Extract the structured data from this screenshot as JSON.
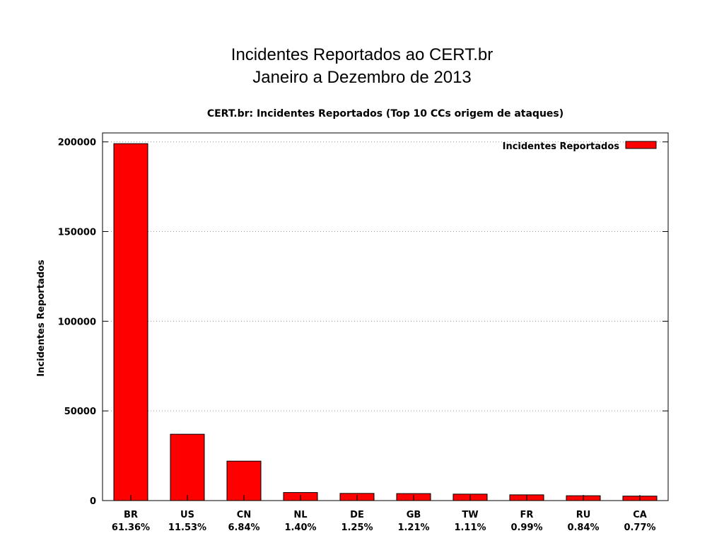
{
  "slide": {
    "title_line1": "Incidentes Reportados ao CERT.br",
    "title_line2": "Janeiro a Dezembro de 2013"
  },
  "chart_data": {
    "type": "bar",
    "title": "CERT.br: Incidentes Reportados (Top 10 CCs origem de ataques)",
    "xlabel": "",
    "ylabel": "Incidentes Reportados",
    "ylim": [
      0,
      205000
    ],
    "yticks": [
      0,
      50000,
      100000,
      150000,
      200000
    ],
    "categories": [
      "BR",
      "US",
      "CN",
      "NL",
      "DE",
      "GB",
      "TW",
      "FR",
      "RU",
      "CA"
    ],
    "category_percent": [
      "61.36%",
      "11.53%",
      "6.84%",
      "1.40%",
      "1.25%",
      "1.21%",
      "1.11%",
      "0.99%",
      "0.84%",
      "0.77%"
    ],
    "series": [
      {
        "name": "Incidentes Reportados",
        "color": "#ff0000",
        "values": [
          199000,
          37000,
          22000,
          4500,
          4000,
          3900,
          3600,
          3200,
          2700,
          2500
        ]
      }
    ],
    "grid": true,
    "legend": "top-right"
  }
}
